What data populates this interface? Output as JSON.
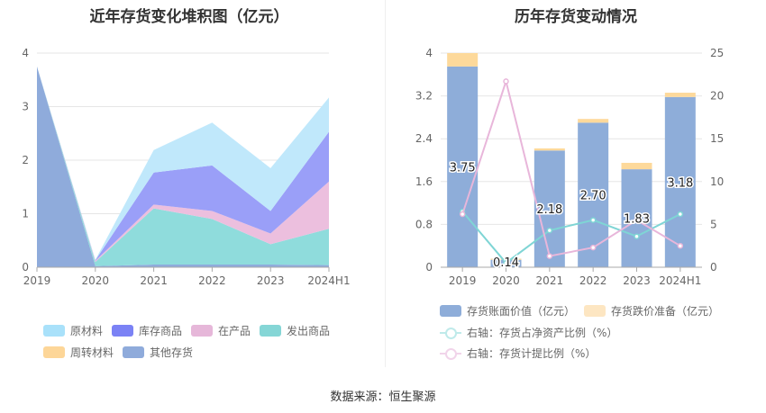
{
  "left_title": "近年存货变化堆积图（亿元）",
  "right_title": "历年存货变动情况",
  "source": "数据来源：恒生聚源",
  "chart_data": [
    {
      "type": "area",
      "stacked": true,
      "x": [
        "2019",
        "2020",
        "2021",
        "2022",
        "2023",
        "2024H1"
      ],
      "ylim": [
        0,
        4
      ],
      "yticks": [
        "0",
        "1",
        "2",
        "3",
        "4"
      ],
      "grid": true,
      "legend_position": "bottom",
      "series": [
        {
          "name": "其他存货",
          "color": "#8fabdb",
          "values": [
            3.75,
            0.02,
            0.05,
            0.05,
            0.05,
            0.04
          ]
        },
        {
          "name": "周转材料",
          "color": "#fdd698",
          "values": [
            0,
            0,
            0,
            0,
            0,
            0
          ]
        },
        {
          "name": "发出商品",
          "color": "#8fdcdc",
          "values": [
            0,
            0.08,
            1.05,
            0.85,
            0.38,
            0.68
          ]
        },
        {
          "name": "在产品",
          "color": "#ecbfde",
          "values": [
            0,
            0.02,
            0.07,
            0.15,
            0.2,
            0.88
          ]
        },
        {
          "name": "库存商品",
          "color": "#9a9ff8",
          "values": [
            0,
            0.01,
            0.6,
            0.85,
            0.42,
            0.93
          ]
        },
        {
          "name": "原材料",
          "color": "#c0e8fb",
          "values": [
            0,
            0.01,
            0.42,
            0.8,
            0.8,
            0.64
          ]
        }
      ],
      "legend": [
        {
          "name": "原材料",
          "color": "#a9e1fa"
        },
        {
          "name": "库存商品",
          "color": "#7b82f5"
        },
        {
          "name": "在产品",
          "color": "#e6b7d9"
        },
        {
          "name": "发出商品",
          "color": "#85d6d6"
        },
        {
          "name": "周转材料",
          "color": "#fdd698"
        },
        {
          "name": "其他存货",
          "color": "#8fabdb"
        }
      ]
    },
    {
      "type": "bar",
      "stacked": true,
      "categories": [
        "2019",
        "2020",
        "2021",
        "2022",
        "2023",
        "2024H1"
      ],
      "ylim": [
        0,
        4
      ],
      "yticks": [
        "0",
        "0.8",
        "1.6",
        "2.4",
        "3.2",
        "4"
      ],
      "y2lim": [
        0,
        25
      ],
      "y2ticks": [
        "0",
        "5",
        "10",
        "15",
        "20",
        "25"
      ],
      "grid": true,
      "legend_position": "bottom",
      "series": [
        {
          "name": "存货账面价值（亿元）",
          "color": "#8eadd9",
          "values": [
            3.75,
            0.14,
            2.18,
            2.7,
            1.83,
            3.18
          ],
          "labels": [
            "3.75",
            "0.14",
            "2.18",
            "2.70",
            "1.83",
            "3.18"
          ]
        },
        {
          "name": "存货跌价准备（亿元）",
          "color": "#fdd99b",
          "values": [
            0.25,
            0.02,
            0.04,
            0.07,
            0.12,
            0.08
          ]
        }
      ],
      "lines": [
        {
          "name": "右轴：存货占净资产比例（%）",
          "color": "#7fd5d5",
          "axis": "right",
          "values": [
            6.5,
            0.5,
            4.3,
            5.5,
            3.6,
            6.2
          ]
        },
        {
          "name": "右轴：存货计提比例（%）",
          "color": "#e8b6da",
          "axis": "right",
          "values": [
            6.2,
            21.7,
            1.3,
            2.3,
            5.5,
            2.5
          ]
        }
      ],
      "legend": [
        {
          "name": "存货账面价值（亿元）",
          "kind": "box",
          "color": "#8eadd9"
        },
        {
          "name": "存货跌价准备（亿元）",
          "kind": "box",
          "color": "#fde6c2"
        },
        {
          "name": "右轴：存货占净资产比例（%）",
          "kind": "line",
          "color": "#bfeaea"
        },
        {
          "name": "右轴：存货计提比例（%）",
          "kind": "line",
          "color": "#f1d4ea"
        }
      ]
    }
  ]
}
